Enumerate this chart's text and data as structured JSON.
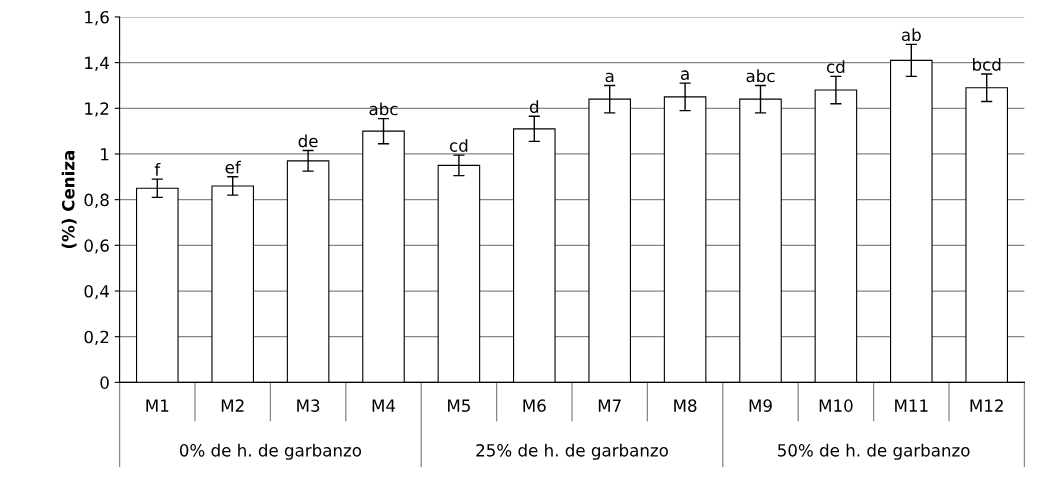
{
  "chart_data": {
    "type": "bar",
    "ylabel": "(%) Ceniza",
    "categories": [
      "M1",
      "M2",
      "M3",
      "M4",
      "M5",
      "M6",
      "M7",
      "M8",
      "M9",
      "M10",
      "M11",
      "M12"
    ],
    "values": [
      0.85,
      0.86,
      0.97,
      1.1,
      0.95,
      1.11,
      1.24,
      1.25,
      1.24,
      1.28,
      1.41,
      1.29
    ],
    "errors": [
      0.04,
      0.04,
      0.045,
      0.055,
      0.045,
      0.055,
      0.06,
      0.06,
      0.06,
      0.06,
      0.07,
      0.06
    ],
    "color": "#ffffff",
    "ylim": [
      0,
      1.6
    ],
    "yticks": [
      0,
      {
        "value": 0.2,
        "label": "0,2"
      },
      {
        "value": 0.4,
        "label": "0,4"
      },
      {
        "value": 0.6,
        "label": "0,6"
      },
      {
        "value": 0.8,
        "label": "0,8"
      },
      1,
      {
        "value": 1.2,
        "label": "1,2"
      },
      {
        "value": 1.4,
        "label": "1,4"
      },
      {
        "value": 1.6,
        "label": "1,6"
      }
    ],
    "grid": "y",
    "annotations": [
      {
        "text": "f",
        "x": "M1",
        "y": 0.89
      },
      {
        "text": "ef",
        "x": "M2",
        "y": 0.9
      },
      {
        "text": "de",
        "x": "M3",
        "y": 1.015
      },
      {
        "text": "abc",
        "x": "M4",
        "y": 1.155
      },
      {
        "text": "cd",
        "x": "M5",
        "y": 0.995
      },
      {
        "text": "d",
        "x": "M6",
        "y": 1.165
      },
      {
        "text": "a",
        "x": "M7",
        "y": 1.3
      },
      {
        "text": "a",
        "x": "M8",
        "y": 1.31
      },
      {
        "text": "abc",
        "x": "M9",
        "y": 1.3
      },
      {
        "text": "cd",
        "x": "M10",
        "y": 1.34
      },
      {
        "text": "ab",
        "x": "M11",
        "y": 1.48
      },
      {
        "text": "bcd",
        "x": "M12",
        "y": 1.35
      },
      "0% de h. de garbanzo",
      "25% de h. de garbanzo",
      "50% de h. de garbanzo"
    ]
  }
}
